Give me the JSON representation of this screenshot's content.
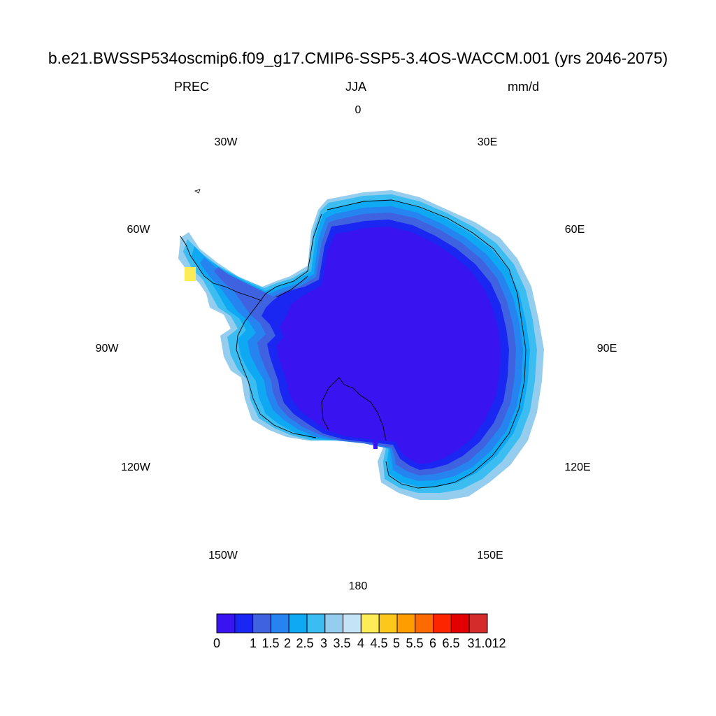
{
  "header": {
    "title": "b.e21.BWSSP534oscmip6.f09_g17.CMIP6-SSP5-3.4OS-WACCM.001 (yrs 2046-2075)",
    "variable": "PREC",
    "season": "JJA",
    "units": "mm/d"
  },
  "map": {
    "projection": "south-polar-stereographic",
    "longitude_labels": [
      "0",
      "30E",
      "60E",
      "90E",
      "120E",
      "150E",
      "180",
      "150W",
      "120W",
      "90W",
      "60W",
      "30W"
    ],
    "ocean_color": "#ffffff",
    "coast_color": "#000000"
  },
  "colorbar": {
    "colors": [
      "#3a13f1",
      "#1a26f1",
      "#3f62e0",
      "#2684f0",
      "#0ea8f3",
      "#3bbdf2",
      "#95cdef",
      "#c5e3f6",
      "#fdeb57",
      "#fdc81c",
      "#fd9d00",
      "#fd6b00",
      "#fd2400",
      "#e30000",
      "#d42b2b"
    ],
    "labels": [
      "0",
      "1",
      "1.5",
      "2",
      "2.5",
      "3",
      "3.5",
      "4",
      "4.5",
      "5",
      "5.5",
      "6",
      "6.5",
      "31.012"
    ]
  }
}
